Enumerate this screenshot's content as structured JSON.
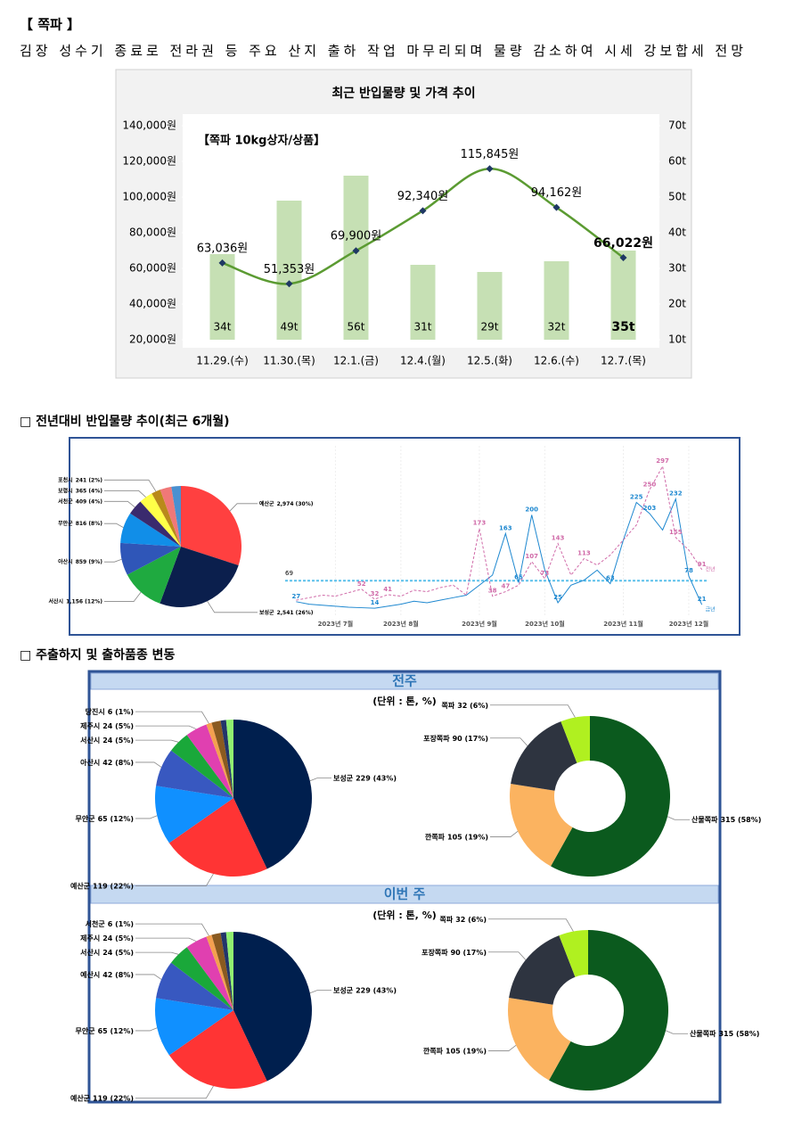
{
  "title": "【 쪽파 】",
  "summary": "김장 성수기 종료로 전라권 등 주요 산지 출하 작업 마무리되며 물량 감소하여 시세 강보합세 전망",
  "section_titles": [
    "□ 전년대비 반입물량 추이(최근 6개월)",
    "□ 주출하지 및 출하품종 변동"
  ],
  "panels": [
    {
      "title": "전주",
      "unit": "(단위 : 톤, %)"
    },
    {
      "title": "이번 주",
      "unit": "(단위 : 톤, %)"
    }
  ],
  "chart_data": [
    {
      "type": "bar_line",
      "title": "최근 반입물량 및 가격 추이",
      "annotation": "【쪽파 10kg상자/상품】",
      "categories": [
        "11.29.(수)",
        "11.30.(목)",
        "12.1.(금)",
        "12.4.(월)",
        "12.5.(화)",
        "12.6.(수)",
        "12.7.(목)"
      ],
      "series": [
        {
          "type": "bar",
          "axis": "y2",
          "color": "#c6e0b4",
          "values": [
            34,
            49,
            56,
            31,
            29,
            32,
            35
          ],
          "value_labels": [
            "34t",
            "49t",
            "56t",
            "31t",
            "29t",
            "32t",
            "35t"
          ]
        },
        {
          "type": "line",
          "color": "#5b9b32",
          "marker_color": "#1f3864",
          "values": [
            63036,
            51353,
            69900,
            92340,
            115845,
            94162,
            66022
          ],
          "value_labels": [
            "63,036원",
            "51,353원",
            "69,900원",
            "92,340원",
            "115,845원",
            "94,162원",
            "66,022원"
          ]
        }
      ],
      "ylim": [
        20000,
        140000
      ],
      "yticks": [
        {
          "value": 20000,
          "label": "20,000원"
        },
        {
          "value": 40000,
          "label": "40,000원"
        },
        {
          "value": 60000,
          "label": "60,000원"
        },
        {
          "value": 80000,
          "label": "80,000원"
        },
        {
          "value": 100000,
          "label": "100,000원"
        },
        {
          "value": 120000,
          "label": "120,000원"
        },
        {
          "value": 140000,
          "label": "140,000원"
        }
      ],
      "y2lim": [
        10,
        70
      ],
      "y2ticks": [
        {
          "value": 10,
          "label": "10t"
        },
        {
          "value": 20,
          "label": "20t"
        },
        {
          "value": 30,
          "label": "30t"
        },
        {
          "value": 40,
          "label": "40t"
        },
        {
          "value": 50,
          "label": "50t"
        },
        {
          "value": 60,
          "label": "60t"
        },
        {
          "value": 70,
          "label": "70t"
        }
      ]
    },
    {
      "type": "pie",
      "categories": [
        "예산군",
        "보성군",
        "서산시",
        "아산시",
        "무안군",
        "서천군",
        "보령시",
        "포천시",
        null,
        null
      ],
      "values": [
        2974,
        2541,
        1156,
        859,
        816,
        409,
        365,
        241,
        300,
        250
      ],
      "value_labels": [
        "2,974 (30%)",
        "2,541 (26%)",
        "1,156 (12%)",
        "859 (9%)",
        "816 (8%)",
        "409 (4%)",
        "365 (4%)",
        "241 (2%)",
        null,
        null
      ],
      "colors": [
        "#ff4040",
        "#0b1f4d",
        "#1faa40",
        "#2f56b8",
        "#118ee8",
        "#3a2a6e",
        "#ffff48",
        "#b98a1a",
        "#f07878",
        "#4a90d0"
      ]
    },
    {
      "type": "line",
      "categories": [
        null,
        null,
        null,
        "2023년 7월",
        null,
        null,
        null,
        null,
        "2023년 8월",
        null,
        null,
        null,
        null,
        null,
        "2023년 9월",
        null,
        null,
        null,
        null,
        "2023년 10월",
        null,
        null,
        null,
        null,
        null,
        "2023년 11월",
        null,
        null,
        null,
        null,
        "2023년 12월",
        null
      ],
      "ylim": [
        0,
        320
      ],
      "average": 69,
      "average_color": "#5bc0eb",
      "series": [
        {
          "name": "금년",
          "color": "#1e88d0",
          "dashed": false,
          "values": [
            27,
            22,
            20,
            18,
            16,
            15,
            14,
            18,
            22,
            28,
            25,
            30,
            35,
            40,
            60,
            80,
            163,
            65,
            200,
            90,
            25,
            60,
            70,
            90,
            63,
            150,
            225,
            203,
            170,
            232,
            78,
            21
          ],
          "value_labels": [
            "27",
            null,
            null,
            null,
            null,
            null,
            "14",
            null,
            null,
            null,
            null,
            null,
            null,
            null,
            null,
            null,
            "163",
            "65",
            "200",
            null,
            "25",
            null,
            null,
            null,
            "63",
            null,
            "225",
            "203",
            null,
            "232",
            "78",
            "21"
          ]
        },
        {
          "name": "전년",
          "color": "#d06aa8",
          "dashed": true,
          "values": [
            30,
            35,
            40,
            38,
            45,
            52,
            32,
            41,
            38,
            50,
            47,
            55,
            60,
            40,
            173,
            38,
            47,
            60,
            107,
            73,
            143,
            80,
            113,
            100,
            120,
            150,
            180,
            250,
            297,
            155,
            130,
            91
          ],
          "value_labels": [
            null,
            null,
            null,
            null,
            null,
            "52",
            "32",
            "41",
            null,
            null,
            null,
            null,
            null,
            null,
            "173",
            "38",
            "47",
            null,
            "107",
            "73",
            "143",
            null,
            "113",
            null,
            null,
            null,
            null,
            "250",
            "297",
            "155",
            null,
            "91"
          ]
        }
      ]
    },
    {
      "type": "pie",
      "categories": [
        "보성군",
        "예산군",
        "무안군",
        "아산시",
        "서산시",
        "제주시",
        "당진시",
        null,
        null,
        null
      ],
      "values": [
        229,
        119,
        65,
        42,
        24,
        24,
        6,
        10,
        6,
        8
      ],
      "value_labels": [
        "229 (43%)",
        "119 (22%)",
        "65 (12%)",
        "42 (8%)",
        "24 (5%)",
        "24 (5%)",
        "6 (1%)",
        null,
        null,
        null
      ],
      "colors": [
        "#001f4e",
        "#ff3434",
        "#1090ff",
        "#3858c0",
        "#1aa83a",
        "#e040b0",
        "#f4a050",
        "#8a5a20",
        "#23356a",
        "#90f070"
      ]
    },
    {
      "type": "pie",
      "categories": [
        "보성군",
        "예산군",
        "무안군",
        "예산시",
        "서산시",
        "제주시",
        "서천군",
        null,
        null,
        null
      ],
      "values": [
        229,
        119,
        65,
        42,
        24,
        24,
        6,
        10,
        6,
        8
      ],
      "value_labels": [
        "229 (43%)",
        "119 (22%)",
        "65 (12%)",
        "42 (8%)",
        "24 (5%)",
        "24 (5%)",
        "6 (1%)",
        null,
        null,
        null
      ],
      "colors": [
        "#001f4e",
        "#ff3434",
        "#1090ff",
        "#3858c0",
        "#1aa83a",
        "#e040b0",
        "#f4a050",
        "#8a5a20",
        "#23356a",
        "#90f070"
      ]
    },
    {
      "type": "donut",
      "categories": [
        "산물쪽파",
        "깐쪽파",
        "포장쪽파",
        "쪽파"
      ],
      "values": [
        315,
        105,
        90,
        32
      ],
      "value_labels": [
        "315 (58%)",
        "105 (19%)",
        "90 (17%)",
        "32 (6%)"
      ],
      "colors": [
        "#0b5a1e",
        "#fbb360",
        "#2e3440",
        "#b0f020"
      ]
    },
    {
      "type": "donut",
      "categories": [
        "산물쪽파",
        "깐쪽파",
        "포장쪽파",
        "쪽파"
      ],
      "values": [
        315,
        105,
        90,
        32
      ],
      "value_labels": [
        "315 (58%)",
        "105 (19%)",
        "90 (17%)",
        "32 (6%)"
      ],
      "colors": [
        "#0b5a1e",
        "#fbb360",
        "#2e3440",
        "#b0f020"
      ]
    }
  ]
}
